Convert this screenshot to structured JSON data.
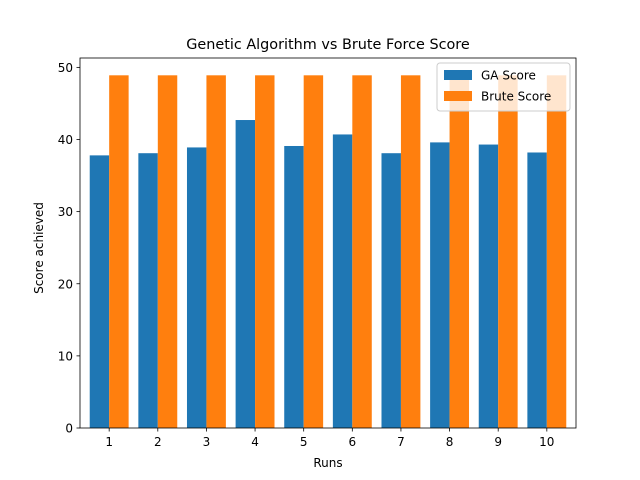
{
  "chart_data": {
    "type": "bar",
    "title": "Genetic Algorithm vs Brute Force Score",
    "xlabel": "Runs",
    "ylabel": "Score achieved",
    "categories": [
      "1",
      "2",
      "3",
      "4",
      "5",
      "6",
      "7",
      "8",
      "9",
      "10"
    ],
    "series": [
      {
        "name": "GA Score",
        "color": "#1f77b4",
        "values": [
          37.8,
          38.1,
          38.9,
          42.7,
          39.1,
          40.7,
          38.1,
          39.6,
          39.3,
          38.2
        ]
      },
      {
        "name": "Brute Score",
        "color": "#ff7f0e",
        "values": [
          48.9,
          48.9,
          48.9,
          48.9,
          48.9,
          48.9,
          48.9,
          48.9,
          48.9,
          48.9
        ]
      }
    ],
    "ylim": [
      0,
      51.3
    ],
    "yticks": [
      0,
      10,
      20,
      30,
      40,
      50
    ],
    "grid": false,
    "legend_position": "top-right"
  }
}
